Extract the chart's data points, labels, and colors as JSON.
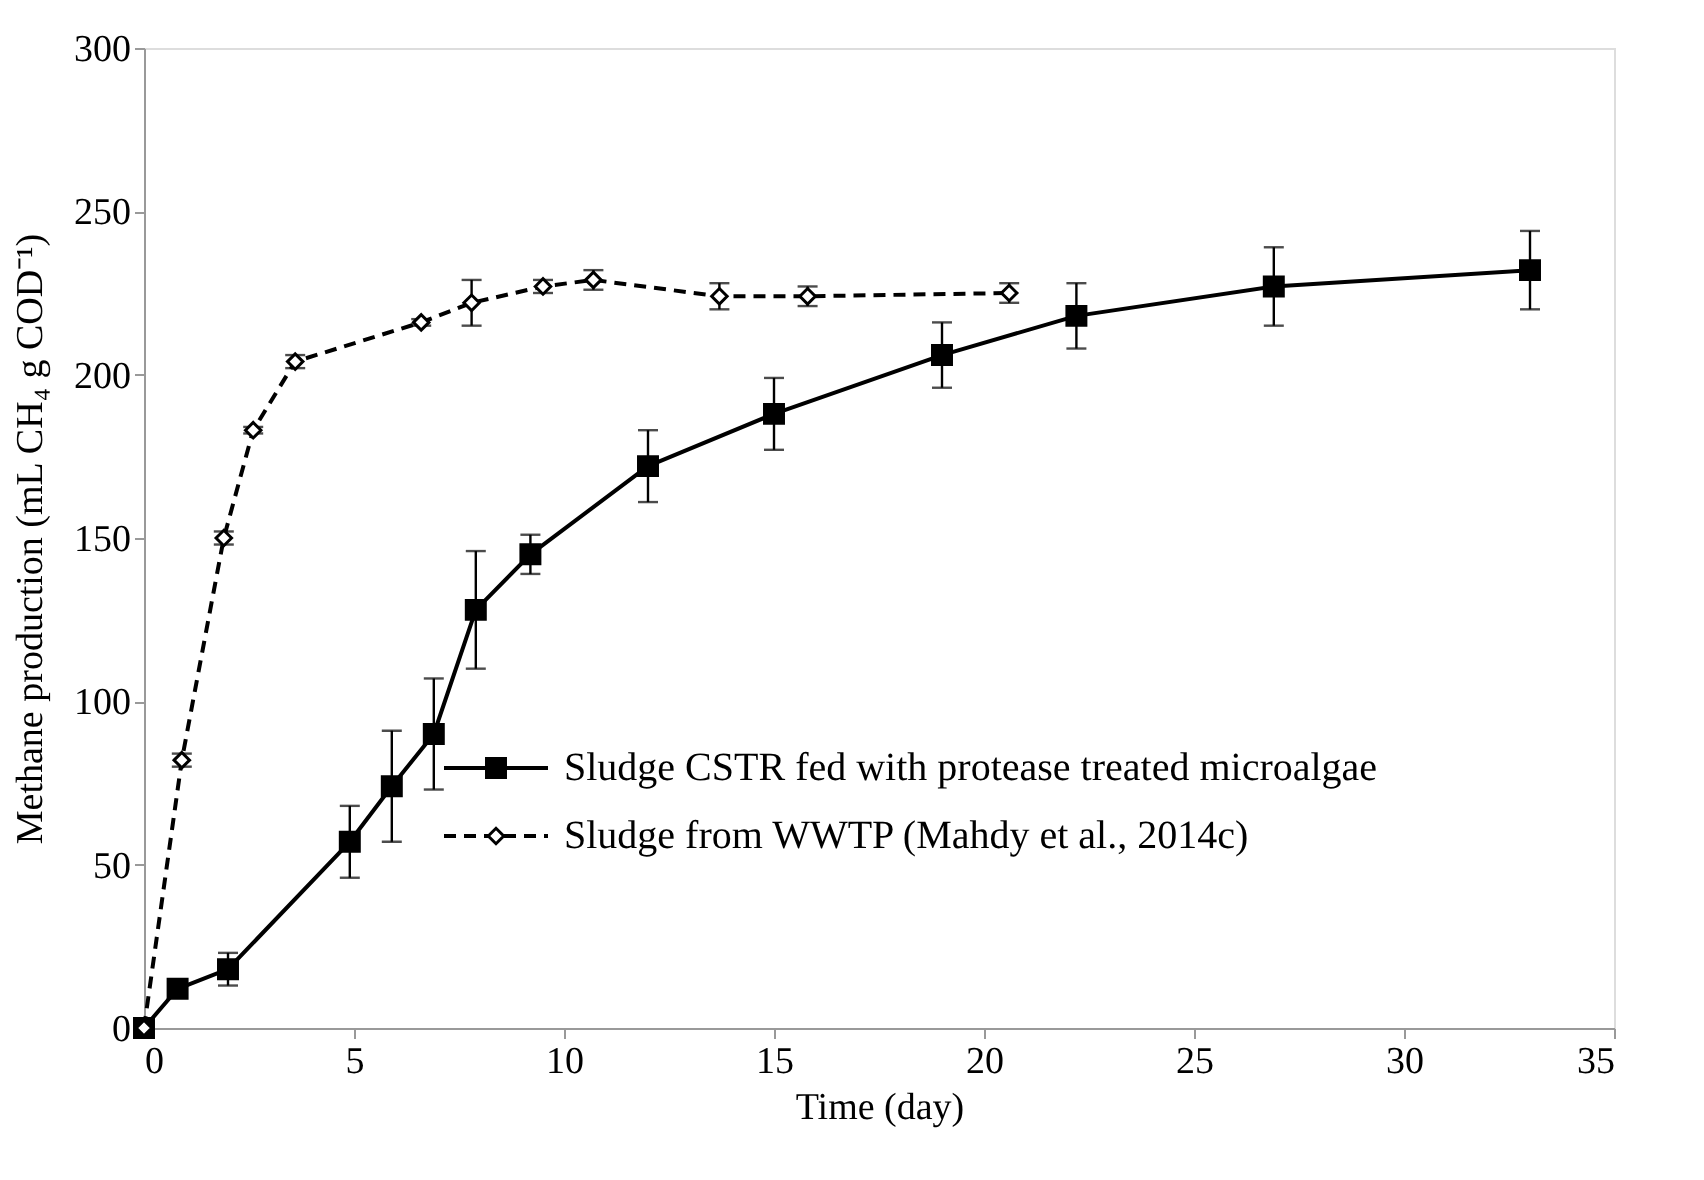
{
  "chart_data": {
    "type": "line",
    "xlabel": "Time (day)",
    "ylabel": "Methane production (mL CH₄ g COD⁻¹)",
    "xlim": [
      0,
      35
    ],
    "xticks": [
      0,
      5,
      10,
      15,
      20,
      25,
      30,
      35
    ],
    "ylim": [
      0,
      300
    ],
    "yticks": [
      0,
      50,
      100,
      150,
      200,
      250,
      300
    ],
    "grid": false,
    "legend": "bottom right",
    "series": [
      {
        "name": "Sludge CSTR fed with protease treated microalgae",
        "color": "#000000",
        "marker": "square",
        "line_style": "solid",
        "x": [
          0,
          0.8,
          2,
          4.9,
          5.9,
          6.9,
          7.9,
          9.2,
          12,
          15,
          19,
          22.2,
          26.9,
          33
        ],
        "values": [
          0,
          12,
          18,
          57,
          74,
          90,
          128,
          145,
          172,
          188,
          206,
          218,
          227,
          232
        ],
        "errors": [
          null,
          2,
          5,
          11,
          17,
          17,
          18,
          6,
          11,
          11,
          10,
          10,
          12,
          12
        ]
      },
      {
        "name": "Sludge from WWTP (Mahdy et al., 2014c)",
        "color": "#000000",
        "marker": "diamond",
        "line_style": "dashed",
        "x": [
          0,
          0.9,
          1.9,
          2.6,
          3.6,
          6.6,
          7.8,
          9.5,
          10.7,
          13.7,
          15.8,
          20.6
        ],
        "values": [
          0,
          82,
          150,
          183,
          204,
          216,
          222,
          227,
          229,
          224,
          224,
          225
        ],
        "errors": [
          null,
          2,
          2,
          1,
          2,
          1,
          7,
          2,
          3,
          4,
          3,
          3
        ]
      }
    ]
  }
}
